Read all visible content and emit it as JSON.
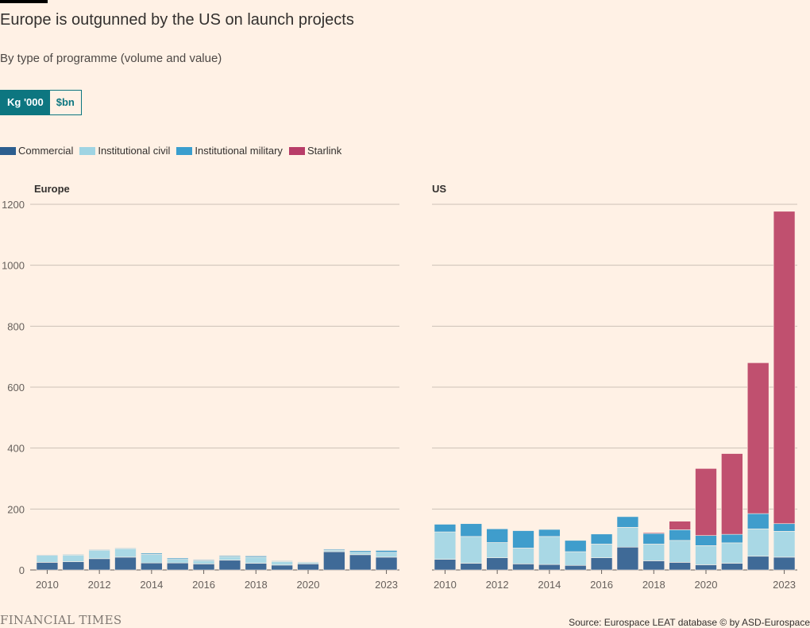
{
  "header": {
    "title": "Europe is outgunned by the US on launch projects",
    "subtitle": "By type of programme (volume and value)"
  },
  "toggle": {
    "option_kg": "Kg '000",
    "option_usd": "$bn",
    "selected": "Kg '000"
  },
  "legend": [
    {
      "name": "Commercial",
      "color": "#2c5e8f"
    },
    {
      "name": "Institutional civil",
      "color": "#9fd4e3"
    },
    {
      "name": "Institutional military",
      "color": "#3a9ece"
    },
    {
      "name": "Starlink",
      "color": "#b83d68"
    }
  ],
  "colors": {
    "Commercial": "#3f6a97",
    "Institutional civil": "#a9d8e5",
    "Institutional military": "#3f9dcc",
    "Starlink": "#c0506f",
    "grid": "#ccc1b7",
    "background": "#fff1e5"
  },
  "footer": {
    "brand": "FINANCIAL TIMES",
    "source": "Source: Eurospace LEAT database © by ASD-Eurospace"
  },
  "chart_data": [
    {
      "type": "bar",
      "stacked": true,
      "title": "Europe",
      "x": [
        2010,
        2011,
        2012,
        2013,
        2014,
        2015,
        2016,
        2017,
        2018,
        2019,
        2020,
        2021,
        2022,
        2023
      ],
      "x_tick_labels": [
        "2010",
        "2012",
        "2014",
        "2016",
        "2018",
        "2020",
        "2023"
      ],
      "y_ticks": [
        0,
        200,
        400,
        600,
        800,
        1000,
        1200
      ],
      "ylim": [
        0,
        1200
      ],
      "ylabel": "Kg '000",
      "series": [
        {
          "name": "Commercial",
          "values": [
            25,
            27,
            37,
            42,
            23,
            23,
            20,
            32,
            22,
            16,
            20,
            60,
            50,
            42
          ]
        },
        {
          "name": "Institutional civil",
          "values": [
            23,
            22,
            28,
            28,
            28,
            12,
            10,
            12,
            20,
            12,
            5,
            5,
            8,
            16
          ]
        },
        {
          "name": "Institutional military",
          "values": [
            2,
            2,
            2,
            2,
            4,
            4,
            3,
            3,
            4,
            2,
            2,
            3,
            5,
            6
          ]
        },
        {
          "name": "Starlink",
          "values": [
            0,
            0,
            0,
            0,
            0,
            0,
            0,
            0,
            0,
            0,
            0,
            0,
            0,
            0
          ]
        }
      ]
    },
    {
      "type": "bar",
      "stacked": true,
      "title": "US",
      "x": [
        2010,
        2011,
        2012,
        2013,
        2014,
        2015,
        2016,
        2017,
        2018,
        2019,
        2020,
        2021,
        2022,
        2023
      ],
      "x_tick_labels": [
        "2010",
        "2012",
        "2014",
        "2016",
        "2018",
        "2020",
        "2023"
      ],
      "y_ticks": [
        0,
        200,
        400,
        600,
        800,
        1000,
        1200
      ],
      "ylim": [
        0,
        1200
      ],
      "ylabel": "Kg '000",
      "series": [
        {
          "name": "Commercial",
          "values": [
            35,
            22,
            40,
            20,
            18,
            15,
            40,
            75,
            30,
            25,
            17,
            22,
            45,
            42
          ]
        },
        {
          "name": "Institutional civil",
          "values": [
            90,
            88,
            50,
            52,
            92,
            45,
            45,
            65,
            55,
            72,
            63,
            67,
            90,
            85
          ]
        },
        {
          "name": "Institutional military",
          "values": [
            25,
            42,
            45,
            57,
            23,
            37,
            33,
            35,
            35,
            35,
            33,
            28,
            50,
            25
          ]
        },
        {
          "name": "Starlink",
          "values": [
            0,
            0,
            0,
            0,
            0,
            0,
            0,
            0,
            3,
            28,
            220,
            265,
            495,
            1025
          ]
        }
      ]
    }
  ]
}
